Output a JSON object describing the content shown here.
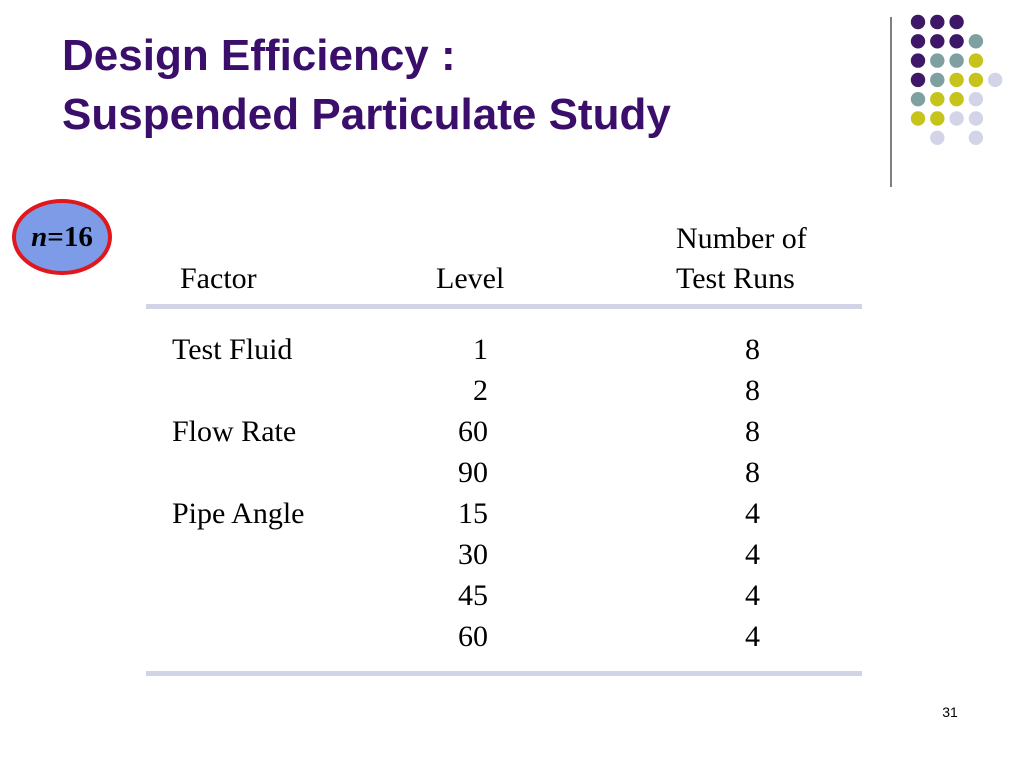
{
  "title": {
    "line1": "Design Efficiency :",
    "line2": "Suspended Particulate Study"
  },
  "badge": {
    "variable": "n",
    "rest": "=16"
  },
  "table": {
    "headers": {
      "factor": "Factor",
      "level": "Level",
      "runs_line1": "Number of",
      "runs_line2": "Test Runs"
    },
    "rows": [
      {
        "factor": "Test Fluid",
        "level": "1",
        "runs": "8"
      },
      {
        "factor": "",
        "level": "2",
        "runs": "8"
      },
      {
        "factor": "Flow Rate",
        "level": "60",
        "runs": "8"
      },
      {
        "factor": "",
        "level": "90",
        "runs": "8"
      },
      {
        "factor": "Pipe Angle",
        "level": "15",
        "runs": "4"
      },
      {
        "factor": "",
        "level": "30",
        "runs": "4"
      },
      {
        "factor": "",
        "level": "45",
        "runs": "4"
      },
      {
        "factor": "",
        "level": "60",
        "runs": "4"
      }
    ]
  },
  "page_number": "31",
  "colors": {
    "title": "#3a0e6a",
    "purple": "#3f1768",
    "teal": "#7ea0a0",
    "yellow": "#c6c41c",
    "lavender": "#d4d4e8",
    "rule": "#d0d4e6",
    "vline": "#7f7f7f",
    "badge_fill": "#7d9be6",
    "badge_border": "#e0171c",
    "badge_text": "#000000"
  },
  "dot_grid": [
    [
      "purple",
      "purple",
      "purple",
      ""
    ],
    [
      "purple",
      "purple",
      "purple",
      "teal"
    ],
    [
      "purple",
      "teal",
      "teal",
      "yellow"
    ],
    [
      "purple",
      "teal",
      "yellow",
      "yellow",
      "lavender"
    ],
    [
      "teal",
      "yellow",
      "yellow",
      "lavender"
    ],
    [
      "yellow",
      "yellow",
      "lavender",
      "lavender"
    ],
    [
      "",
      "lavender",
      "",
      "lavender"
    ]
  ]
}
